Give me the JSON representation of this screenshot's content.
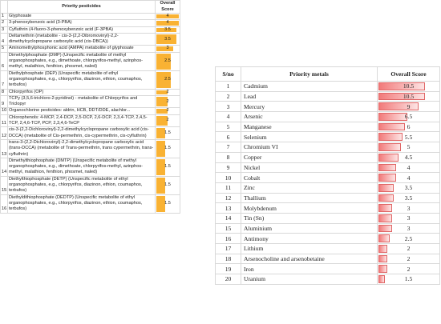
{
  "pesticides_table": {
    "headers": [
      "Priority pesticides",
      "Overall Score"
    ],
    "rows": [
      {
        "no": 1,
        "name": "Glyphosate",
        "score": 4
      },
      {
        "no": 2,
        "name": "3-phenoxybenzoic acid (3-PBA)",
        "score": 4
      },
      {
        "no": 3,
        "name": "Cyfluthrin (4-fluoro-3-phenoxybenzoic acid (F-3PBA)",
        "score": 3.5
      },
      {
        "no": 4,
        "name": "Deltamethrin (metabolite - cis-3-(2,2-Dibromovinyl)-2,2-dimethylcyclopropane carboxylic acid (cis-DBCA))",
        "score": 3.5
      },
      {
        "no": 5,
        "name": "Aminomethylphosphonic acid (AMPA) metabolite of glyphosate",
        "score": 3
      },
      {
        "no": 6,
        "name": "Dimethylphosphate (DMP) (Unspecific metabolite of methyl organophosphates, e.g., dimethoate, chlorpyrifos-methyl, azinphos-methyl, malathion, fenthion, phosmet, naled)",
        "score": 2.5
      },
      {
        "no": 7,
        "name": "Diethylphosphate (DEP) (Unspecific metabolite of ethyl organophosphates, e.g., chlorpyrifos, diazinon, ethion, coumaphos, terbufos)",
        "score": 2.5
      },
      {
        "no": 8,
        "name": "Chlorpyrifos (OP)",
        "score": 2
      },
      {
        "no": 9,
        "name": "TCPy (3,5,6-trichloro-2-pyridinol) - metabolite of Chlorpyrifos and Triclopyr",
        "score": 2
      },
      {
        "no": 10,
        "name": "Organochlorine pesticides: aldrin, HCB, DDT/DDE, alachlor...",
        "score": 2
      },
      {
        "no": 11,
        "name": "Chlorophenols: 4-MCP, 2,4-DCP, 2,5-DCP, 2,6-DCP, 2,3,4-TCP, 2,4,5-TCP, 2,4,6-TCP, PCP, 2,3,4,6-TeCP",
        "score": 2
      },
      {
        "no": 12,
        "name": "cis-3-(2,2-Dichlorovinyl)-2,2-dimethylcyclopropane carboxylic acid (cis-DCCA) (metabolite of Cis-permethrin, cis-cypermethrin, cis-cyfluthrin)",
        "score": 1.5
      },
      {
        "no": 13,
        "name": "trans-3-(2,2-Dichlorovinyl)-2,2-dimethylcyclopropane carboxylic acid (trans-DCCA) (metabolite of Trans-permethrin, trans cypermethrin, trans-cyfluthrin)",
        "score": 1.5
      },
      {
        "no": 14,
        "name": "Dimethylthiophosphate (DMTP) (Unspecific metabolite of methyl organophosphates, e.g., dimethoate, chlorpyrifos-methyl, azinphos-methyl, malathion, fenthion, phosmet, naled)",
        "score": 1.5
      },
      {
        "no": 15,
        "name": "Diethylthiophosphate (DETP) (Unspecific metabolite of ethyl organophosphates, e.g., chlorpyrifos, diazinon, ethion, coumaphos, terbufos)",
        "score": 1.5
      },
      {
        "no": 16,
        "name": "Diethyldithiophosphate (DEDTP) (Unspecific metabolite of ethyl organophosphates, e.g., chlorpyrifos, diazinon, ethion, coumaphos, terbufos)",
        "score": 1.5
      }
    ]
  },
  "metals_table": {
    "headers": [
      "S/no",
      "Priority metals",
      "Overall Score"
    ],
    "rows": [
      {
        "no": 1,
        "name": "Cadmium",
        "score": 10.5
      },
      {
        "no": 2,
        "name": "Lead",
        "score": 10.5
      },
      {
        "no": 3,
        "name": "Mercury",
        "score": 9
      },
      {
        "no": 4,
        "name": "Arsenic",
        "score": 6.5
      },
      {
        "no": 5,
        "name": "Manganese",
        "score": 6
      },
      {
        "no": 6,
        "name": "Selenium",
        "score": 5.5
      },
      {
        "no": 7,
        "name": "Chromium VI",
        "score": 5
      },
      {
        "no": 8,
        "name": "Copper",
        "score": 4.5
      },
      {
        "no": 9,
        "name": "Nickel",
        "score": 4
      },
      {
        "no": 10,
        "name": "Cobalt",
        "score": 4
      },
      {
        "no": 11,
        "name": "Zinc",
        "score": 3.5
      },
      {
        "no": 12,
        "name": "Thallium",
        "score": 3.5
      },
      {
        "no": 13,
        "name": "Molybdenum",
        "score": 3
      },
      {
        "no": 14,
        "name": "Tin (Sn)",
        "score": 3
      },
      {
        "no": 15,
        "name": "Aluminium",
        "score": 3
      },
      {
        "no": 16,
        "name": "Antimony",
        "score": 2.5
      },
      {
        "no": 17,
        "name": "Lithium",
        "score": 2
      },
      {
        "no": 18,
        "name": "Arsenocholine and arsenobetaine",
        "score": 2
      },
      {
        "no": 19,
        "name": "Iron",
        "score": 2
      },
      {
        "no": 20,
        "name": "Uranium",
        "score": 1.5
      }
    ]
  }
}
